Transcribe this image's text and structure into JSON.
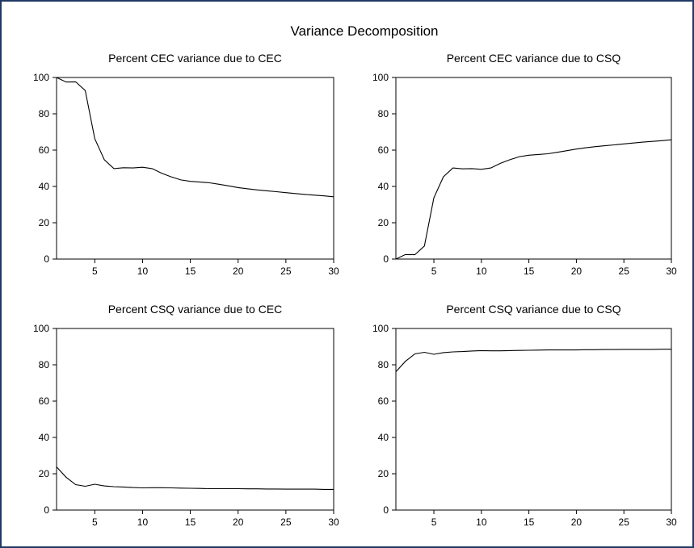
{
  "chart_data": {
    "title": "Variance Decomposition",
    "type": "line",
    "panels": [
      {
        "title": "Percent CEC variance due to CEC",
        "xlim": [
          1,
          30
        ],
        "ylim": [
          0,
          100
        ],
        "xticks": [
          5,
          10,
          15,
          20,
          25,
          30
        ],
        "yticks": [
          0,
          20,
          40,
          60,
          80,
          100
        ],
        "x": [
          1,
          2,
          3,
          4,
          5,
          6,
          7,
          8,
          9,
          10,
          11,
          12,
          13,
          14,
          15,
          16,
          17,
          18,
          19,
          20,
          21,
          22,
          23,
          24,
          25,
          26,
          27,
          28,
          29,
          30
        ],
        "values": [
          100,
          97.5,
          97.6,
          92.8,
          66.3,
          54.7,
          49.8,
          50.3,
          50.2,
          50.6,
          49.8,
          47.3,
          45.3,
          43.6,
          42.8,
          42.4,
          42.0,
          41.2,
          40.3,
          39.4,
          38.7,
          38.1,
          37.6,
          37.1,
          36.6,
          36.1,
          35.6,
          35.2,
          34.8,
          34.3
        ]
      },
      {
        "title": "Percent CEC variance due to CSQ",
        "xlim": [
          1,
          30
        ],
        "ylim": [
          0,
          100
        ],
        "xticks": [
          5,
          10,
          15,
          20,
          25,
          30
        ],
        "yticks": [
          0,
          20,
          40,
          60,
          80,
          100
        ],
        "x": [
          1,
          2,
          3,
          4,
          5,
          6,
          7,
          8,
          9,
          10,
          11,
          12,
          13,
          14,
          15,
          16,
          17,
          18,
          19,
          20,
          21,
          22,
          23,
          24,
          25,
          26,
          27,
          28,
          29,
          30
        ],
        "values": [
          0,
          2.5,
          2.4,
          7.2,
          33.7,
          45.3,
          50.2,
          49.7,
          49.8,
          49.4,
          50.2,
          52.7,
          54.7,
          56.4,
          57.2,
          57.6,
          58.0,
          58.8,
          59.7,
          60.6,
          61.3,
          61.9,
          62.4,
          62.9,
          63.4,
          63.9,
          64.4,
          64.8,
          65.2,
          65.7
        ]
      },
      {
        "title": "Percent CSQ variance due to CEC",
        "xlim": [
          1,
          30
        ],
        "ylim": [
          0,
          100
        ],
        "xticks": [
          5,
          10,
          15,
          20,
          25,
          30
        ],
        "yticks": [
          0,
          20,
          40,
          60,
          80,
          100
        ],
        "x": [
          1,
          2,
          3,
          4,
          5,
          6,
          7,
          8,
          9,
          10,
          11,
          12,
          13,
          14,
          15,
          16,
          17,
          18,
          19,
          20,
          21,
          22,
          23,
          24,
          25,
          26,
          27,
          28,
          29,
          30
        ],
        "values": [
          23.8,
          18.1,
          14.0,
          13.1,
          14.2,
          13.3,
          12.9,
          12.7,
          12.4,
          12.2,
          12.3,
          12.3,
          12.2,
          12.1,
          12.0,
          11.9,
          11.8,
          11.8,
          11.8,
          11.8,
          11.7,
          11.7,
          11.6,
          11.6,
          11.5,
          11.5,
          11.5,
          11.5,
          11.4,
          11.4
        ]
      },
      {
        "title": "Percent CSQ variance due to CSQ",
        "xlim": [
          1,
          30
        ],
        "ylim": [
          0,
          100
        ],
        "xticks": [
          5,
          10,
          15,
          20,
          25,
          30
        ],
        "yticks": [
          0,
          20,
          40,
          60,
          80,
          100
        ],
        "x": [
          1,
          2,
          3,
          4,
          5,
          6,
          7,
          8,
          9,
          10,
          11,
          12,
          13,
          14,
          15,
          16,
          17,
          18,
          19,
          20,
          21,
          22,
          23,
          24,
          25,
          26,
          27,
          28,
          29,
          30
        ],
        "values": [
          76.2,
          81.9,
          86.0,
          86.9,
          85.8,
          86.7,
          87.1,
          87.3,
          87.6,
          87.8,
          87.7,
          87.7,
          87.8,
          87.9,
          88.0,
          88.1,
          88.2,
          88.2,
          88.2,
          88.2,
          88.3,
          88.3,
          88.4,
          88.4,
          88.5,
          88.5,
          88.5,
          88.5,
          88.6,
          88.6
        ]
      }
    ]
  }
}
